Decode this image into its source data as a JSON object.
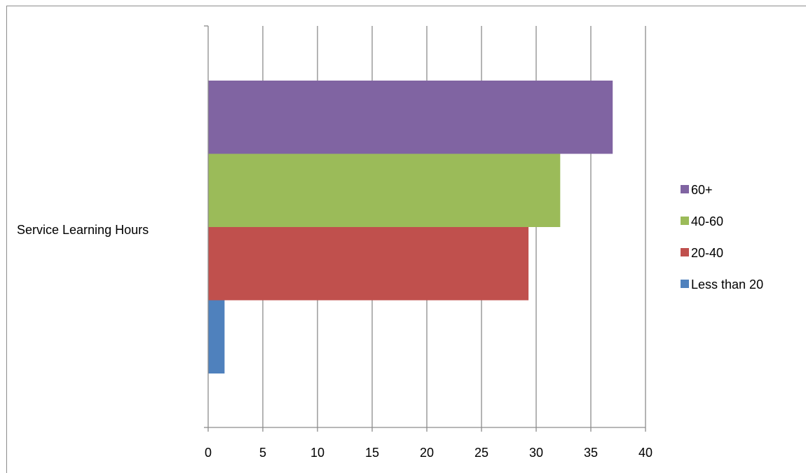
{
  "chart_data": {
    "type": "bar",
    "orientation": "horizontal",
    "categories": [
      "Service Learning Hours"
    ],
    "series": [
      {
        "name": "Less than 20",
        "values": [
          1.5
        ],
        "color": "#4f81bd"
      },
      {
        "name": "20-40",
        "values": [
          29.3
        ],
        "color": "#c0504d"
      },
      {
        "name": "40-60",
        "values": [
          32.2
        ],
        "color": "#9bbb59"
      },
      {
        "name": "60+",
        "values": [
          37
        ],
        "color": "#8064a2"
      }
    ],
    "x_ticks": [
      "0",
      "5",
      "10",
      "15",
      "20",
      "25",
      "30",
      "35",
      "40"
    ],
    "xlim": [
      0,
      40
    ],
    "grid": "vertical",
    "legend_position": "right",
    "title": "",
    "xlabel": "",
    "ylabel": ""
  }
}
